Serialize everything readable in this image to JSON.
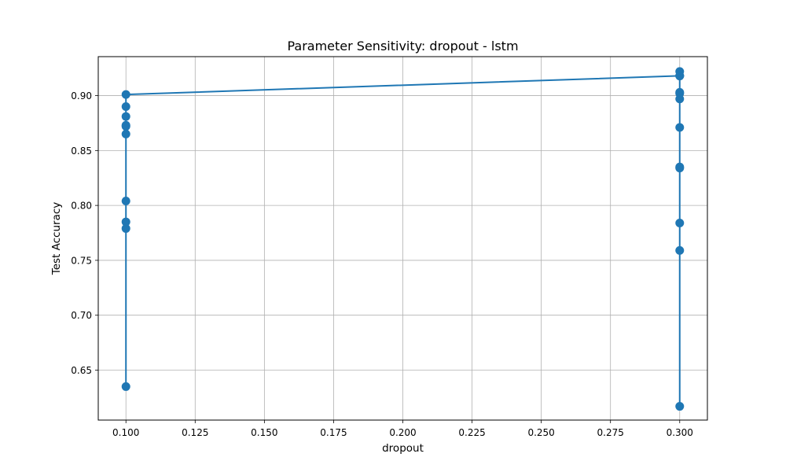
{
  "chart_data": {
    "type": "line",
    "title": "Parameter Sensitivity: dropout - lstm",
    "xlabel": "dropout",
    "ylabel": "Test Accuracy",
    "xlim": [
      0.09,
      0.31
    ],
    "ylim": [
      0.6045,
      0.9355
    ],
    "xticks": [
      0.1,
      0.125,
      0.15,
      0.175,
      0.2,
      0.225,
      0.25,
      0.275,
      0.3
    ],
    "xtick_labels": [
      "0.100",
      "0.125",
      "0.150",
      "0.175",
      "0.200",
      "0.225",
      "0.250",
      "0.275",
      "0.300"
    ],
    "yticks": [
      0.65,
      0.7,
      0.75,
      0.8,
      0.85,
      0.9
    ],
    "ytick_labels": [
      "0.65",
      "0.70",
      "0.75",
      "0.80",
      "0.85",
      "0.90"
    ],
    "grid": true,
    "line_color": "#1f77b4",
    "x": [
      0.1,
      0.1,
      0.1,
      0.1,
      0.1,
      0.1,
      0.1,
      0.1,
      0.1,
      0.1,
      0.3,
      0.3,
      0.3,
      0.3,
      0.3,
      0.3,
      0.3,
      0.3,
      0.3,
      0.3,
      0.3,
      0.3,
      0.3
    ],
    "y": [
      0.635,
      0.779,
      0.785,
      0.804,
      0.865,
      0.872,
      0.873,
      0.881,
      0.89,
      0.901,
      0.918,
      0.617,
      0.759,
      0.784,
      0.834,
      0.835,
      0.871,
      0.897,
      0.902,
      0.903,
      0.918,
      0.922,
      0.918
    ]
  }
}
